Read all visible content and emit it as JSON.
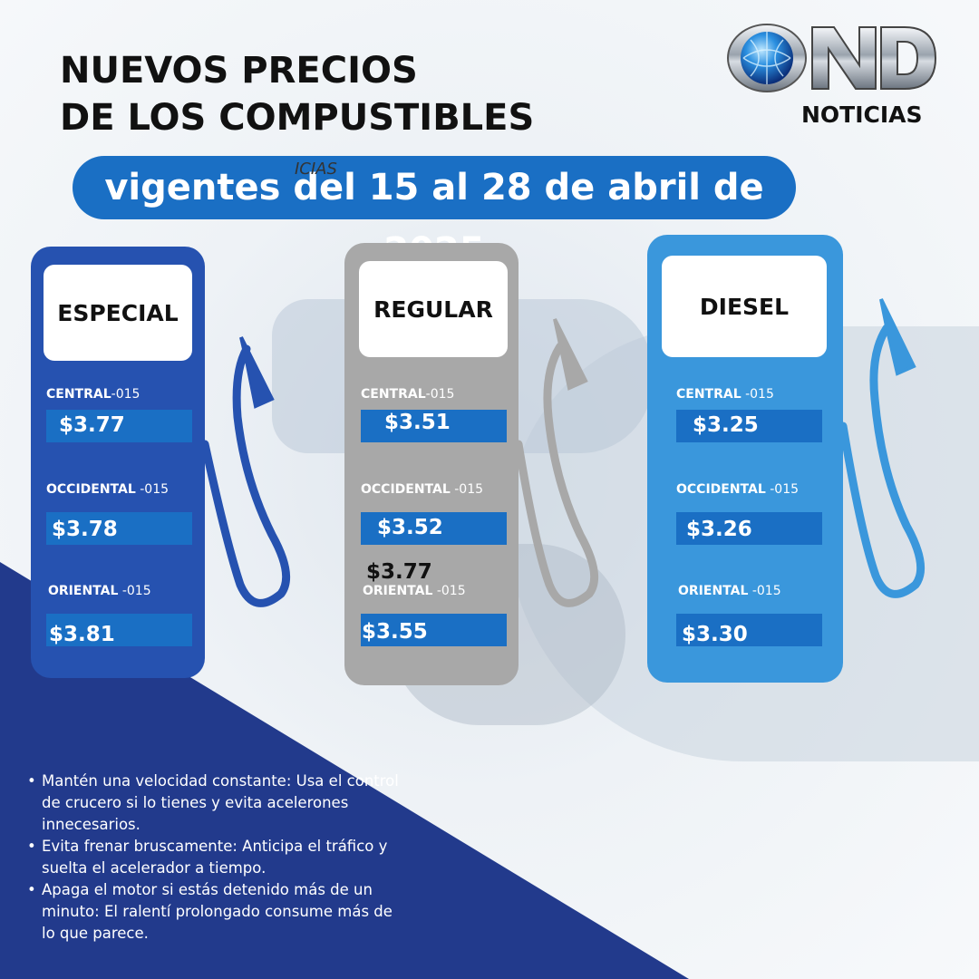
{
  "title": {
    "line1": "NUEVOS PRECIOS",
    "line2": "DE LOS COMPUSTIBLES"
  },
  "subtitle": "vigentes del 15 al 28 de abril de 2025",
  "overlay_artifact": "ICIAS",
  "logo": {
    "mark": "ND",
    "caption": "NOTICIAS",
    "icon": "globe-icon"
  },
  "colors": {
    "especial": "#2652b0",
    "regular": "#a8a8a8",
    "diesel": "#3a97dc",
    "price_box": "#1a6fc4",
    "triangle": "#223a8c",
    "pill": "#1a6fc4"
  },
  "pumps": [
    {
      "label": "ESPECIAL",
      "rows": [
        {
          "region": "CENTRAL",
          "code": "-015",
          "price": "$3.77"
        },
        {
          "region": "OCCIDENTAL",
          "code": " -015",
          "price": "$3.78"
        },
        {
          "region": "ORIENTAL",
          "code": "  -015",
          "price": "$3.81"
        }
      ]
    },
    {
      "label": "REGULAR",
      "rows": [
        {
          "region": "CENTRAL",
          "code": "-015",
          "price": "$3.51"
        },
        {
          "region": "OCCIDENTAL",
          "code": " -015",
          "price": "$3.52"
        },
        {
          "region": "ORIENTAL",
          "code": "  -015",
          "price": "$3.55"
        }
      ],
      "stray_price": "$3.77"
    },
    {
      "label": "DIESEL",
      "rows": [
        {
          "region": "CENTRAL",
          "code": " -015",
          "price": "$3.25"
        },
        {
          "region": "OCCIDENTAL",
          "code": "  -015",
          "price": "$3.26"
        },
        {
          "region": "ORIENTAL",
          "code": "  -015",
          "price": "$3.30"
        }
      ]
    }
  ],
  "tips": [
    "Mantén una velocidad constante: Usa el control de crucero si lo tienes y evita acelerones innecesarios.",
    "Evita frenar bruscamente: Anticipa el tráfico y suelta el acelerador a tiempo.",
    "Apaga el motor si estás detenido más de un minuto: El ralentí prolongado consume más de lo que parece."
  ]
}
